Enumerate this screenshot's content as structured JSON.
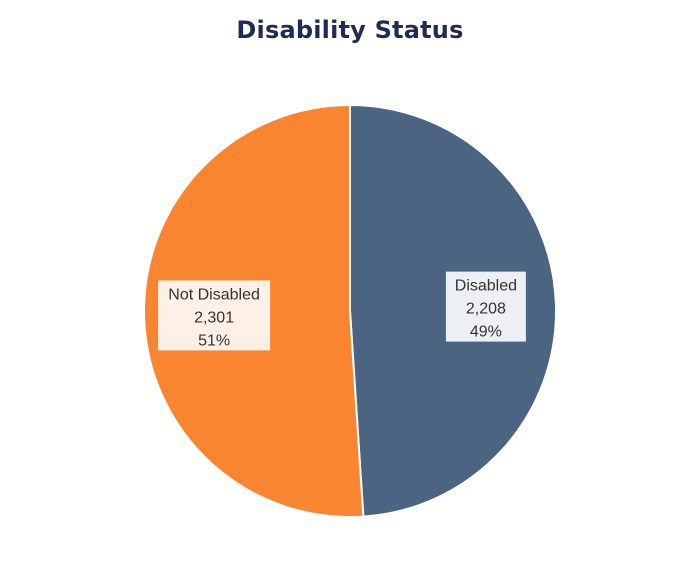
{
  "chart_data": {
    "type": "pie",
    "title": "Disability Status",
    "slices": [
      {
        "label": "Disabled",
        "value": 2208,
        "value_text": "2,208",
        "percent_text": "49%",
        "color": "#4a6482",
        "label_bg": "#eceff3"
      },
      {
        "label": "Not Disabled",
        "value": 2301,
        "value_text": "2,301",
        "percent_text": "51%",
        "color": "#f98531",
        "label_bg": "#fdf0e7"
      }
    ],
    "start": "12 o'clock",
    "direction": "clockwise",
    "legend": "none"
  }
}
